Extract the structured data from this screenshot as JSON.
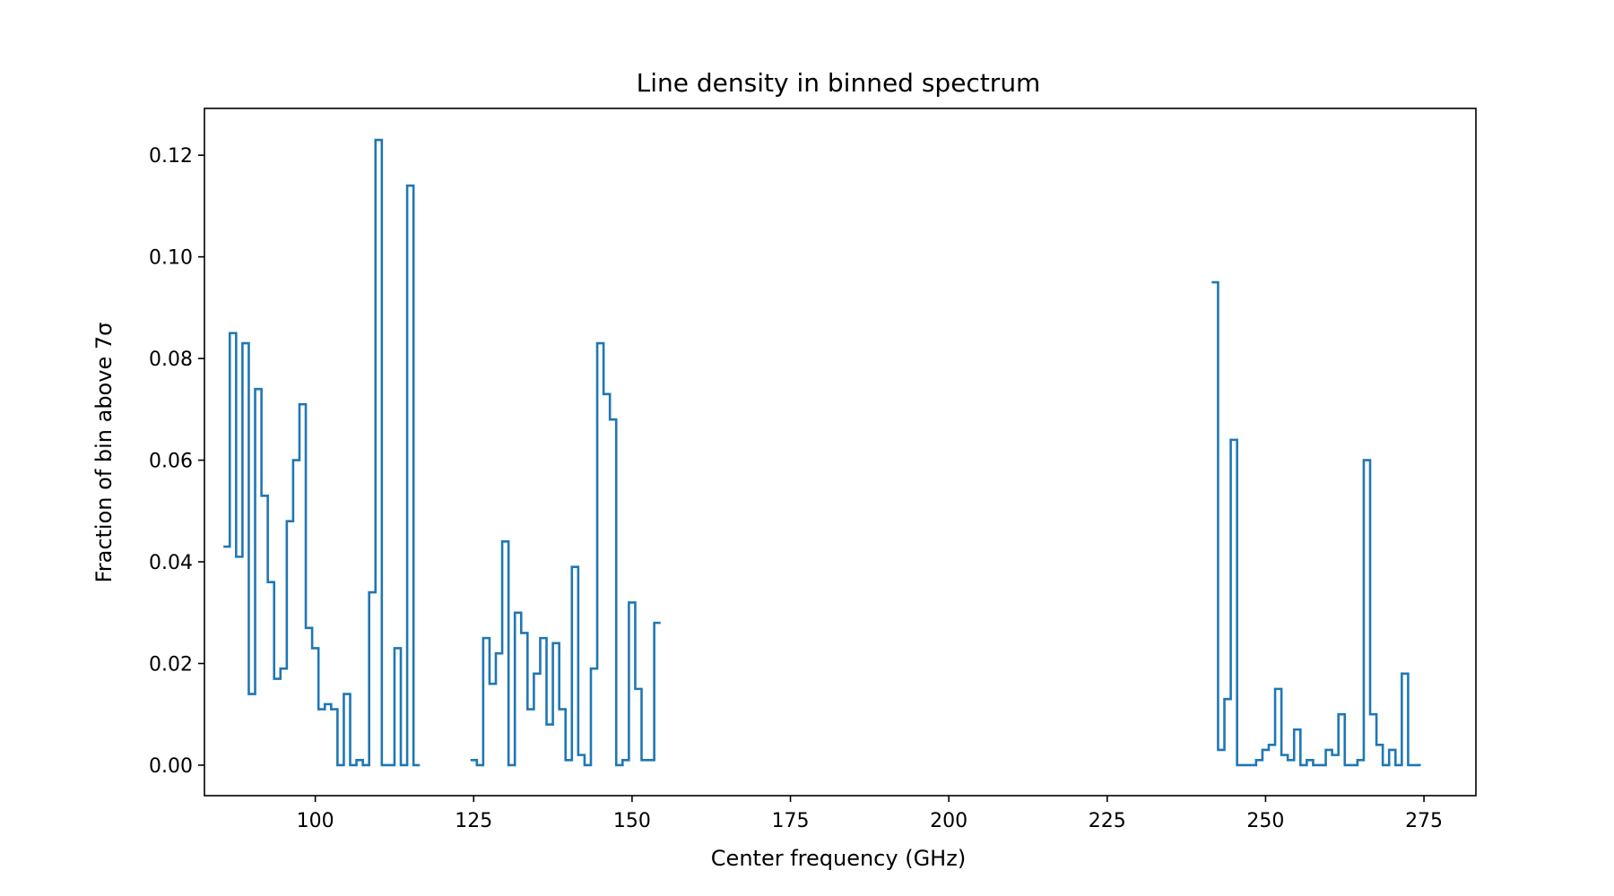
{
  "chart_data": {
    "type": "line",
    "style": "steps-mid",
    "title": "Line density in binned spectrum",
    "xlabel": "Center frequency (GHz)",
    "ylabel": "Fraction of bin above 7σ",
    "xlim": [
      82.5,
      283.2
    ],
    "ylim": [
      -0.006,
      0.1292
    ],
    "xticks": [
      100,
      125,
      150,
      175,
      200,
      225,
      250,
      275
    ],
    "yticks": [
      0.0,
      0.02,
      0.04,
      0.06,
      0.08,
      0.1,
      0.12
    ],
    "xtick_labels": [
      "100",
      "125",
      "150",
      "175",
      "200",
      "225",
      "250",
      "275"
    ],
    "ytick_labels": [
      "0.00",
      "0.02",
      "0.04",
      "0.06",
      "0.08",
      "0.10",
      "0.12"
    ],
    "line_color": "#1f77b4",
    "grid": false,
    "series": [
      {
        "x": [
          86,
          87,
          88,
          89,
          90,
          91,
          92,
          93,
          94,
          95,
          96,
          97,
          98,
          99,
          100,
          101,
          102,
          103,
          104,
          105,
          106,
          107,
          108,
          109,
          110,
          111,
          112,
          113,
          114,
          115,
          116
        ],
        "values": [
          0.043,
          0.085,
          0.041,
          0.083,
          0.014,
          0.074,
          0.053,
          0.036,
          0.017,
          0.019,
          0.048,
          0.06,
          0.071,
          0.027,
          0.023,
          0.011,
          0.012,
          0.011,
          0.0,
          0.014,
          0.0,
          0.001,
          0.0,
          0.034,
          0.123,
          0.0,
          0.0,
          0.023,
          0.0,
          0.114,
          0.0
        ]
      },
      {
        "x": [
          125,
          126,
          127,
          128,
          129,
          130,
          131,
          132,
          133,
          134,
          135,
          136,
          137,
          138,
          139,
          140,
          141,
          142,
          143,
          144,
          145,
          146,
          147,
          148,
          149,
          150,
          151,
          152,
          153,
          154
        ],
        "values": [
          0.001,
          0.0,
          0.025,
          0.016,
          0.022,
          0.044,
          0.0,
          0.03,
          0.026,
          0.011,
          0.018,
          0.025,
          0.008,
          0.024,
          0.011,
          0.001,
          0.039,
          0.002,
          0.0,
          0.019,
          0.083,
          0.073,
          0.068,
          0.0,
          0.001,
          0.032,
          0.015,
          0.001,
          0.001,
          0.028
        ]
      },
      {
        "x": [
          242,
          243,
          244,
          245,
          246,
          247,
          248,
          249,
          250,
          251,
          252,
          253,
          254,
          255,
          256,
          257,
          258,
          259,
          260,
          261,
          262,
          263,
          264,
          265,
          266,
          267,
          268,
          269,
          270,
          271,
          272,
          273,
          274
        ],
        "values": [
          0.095,
          0.003,
          0.013,
          0.064,
          0.0,
          0.0,
          0.0,
          0.001,
          0.003,
          0.004,
          0.015,
          0.002,
          0.001,
          0.007,
          0.0,
          0.001,
          0.0,
          0.0,
          0.003,
          0.002,
          0.01,
          0.0,
          0.0,
          0.001,
          0.06,
          0.01,
          0.004,
          0.0,
          0.003,
          0.0,
          0.018,
          0.0,
          0.0
        ]
      }
    ]
  }
}
